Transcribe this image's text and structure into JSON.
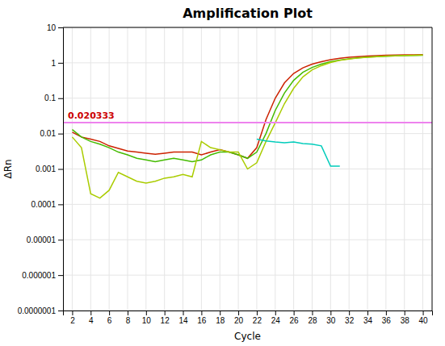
{
  "chart_data": {
    "type": "line",
    "title": "Amplification Plot",
    "x_label": "Cycle",
    "y_label": "ΔRn",
    "log": "y",
    "grid": true,
    "xlim": [
      1,
      41
    ],
    "ylim": [
      1e-07,
      10
    ],
    "xticks": [
      2,
      4,
      6,
      8,
      10,
      12,
      14,
      16,
      18,
      20,
      22,
      24,
      26,
      28,
      30,
      32,
      34,
      36,
      38,
      40
    ],
    "yticks": [
      {
        "value": 1e-07,
        "label": "0.0000001"
      },
      {
        "value": 1e-06,
        "label": "0.000001"
      },
      {
        "value": 1e-05,
        "label": "0.00001"
      },
      {
        "value": 0.0001,
        "label": "0.0001"
      },
      0.001,
      0.01,
      0.1,
      1,
      10
    ],
    "series": [
      {
        "color": "#cc2200",
        "x": [
          2,
          3,
          4,
          5,
          6,
          7,
          8,
          9,
          10,
          11,
          12,
          13,
          14,
          15,
          16,
          17,
          18,
          19,
          20,
          21,
          22,
          23,
          24,
          25,
          26,
          27,
          28,
          29,
          30,
          31,
          32,
          33,
          34,
          35,
          36,
          37,
          38,
          39,
          40
        ],
        "values": [
          0.011,
          0.008,
          0.007,
          0.006,
          0.0045,
          0.0038,
          0.0032,
          0.003,
          0.0028,
          0.0026,
          0.0028,
          0.003,
          0.003,
          0.003,
          0.0025,
          0.003,
          0.0035,
          0.003,
          0.0025,
          0.002,
          0.004,
          0.025,
          0.1,
          0.27,
          0.5,
          0.72,
          0.92,
          1.08,
          1.22,
          1.34,
          1.43,
          1.5,
          1.56,
          1.6,
          1.63,
          1.65,
          1.67,
          1.68,
          1.7
        ]
      },
      {
        "color": "#44bb00",
        "x": [
          2,
          3,
          4,
          5,
          6,
          7,
          8,
          9,
          10,
          11,
          12,
          13,
          14,
          15,
          16,
          17,
          18,
          19,
          20,
          21,
          22,
          23,
          24,
          25,
          26,
          27,
          28,
          29,
          30,
          31,
          32,
          33,
          34,
          35,
          36,
          37,
          38,
          39,
          40
        ],
        "values": [
          0.013,
          0.008,
          0.006,
          0.005,
          0.004,
          0.003,
          0.0025,
          0.002,
          0.0018,
          0.0016,
          0.0018,
          0.002,
          0.0018,
          0.0016,
          0.0018,
          0.0025,
          0.003,
          0.003,
          0.0025,
          0.002,
          0.003,
          0.01,
          0.045,
          0.14,
          0.32,
          0.54,
          0.74,
          0.92,
          1.08,
          1.2,
          1.3,
          1.38,
          1.45,
          1.5,
          1.54,
          1.57,
          1.6,
          1.62,
          1.64
        ]
      },
      {
        "color": "#aacc00",
        "x": [
          2,
          3,
          4,
          5,
          6,
          7,
          8,
          9,
          10,
          11,
          12,
          13,
          14,
          15,
          16,
          17,
          18,
          19,
          20,
          21,
          22,
          23,
          24,
          25,
          26,
          27,
          28,
          29,
          30,
          31,
          32,
          33,
          34,
          35,
          36,
          37,
          38,
          39,
          40
        ],
        "values": [
          0.008,
          0.004,
          0.0002,
          0.00015,
          0.00025,
          0.0008,
          0.0006,
          0.00045,
          0.0004,
          0.00045,
          0.00055,
          0.0006,
          0.0007,
          0.0006,
          0.006,
          0.004,
          0.0035,
          0.003,
          0.003,
          0.001,
          0.0015,
          0.006,
          0.02,
          0.07,
          0.19,
          0.4,
          0.63,
          0.83,
          1.02,
          1.17,
          1.28,
          1.37,
          1.44,
          1.5,
          1.55,
          1.58,
          1.61,
          1.63,
          1.65
        ]
      },
      {
        "color": "#00ccbb",
        "x": [
          22,
          23,
          24,
          25,
          26,
          27,
          28,
          29,
          30,
          31
        ],
        "values": [
          0.007,
          0.0062,
          0.0058,
          0.0055,
          0.0058,
          0.0052,
          0.005,
          0.0045,
          0.0012,
          0.0012
        ]
      }
    ],
    "annotations": [
      {
        "type": "hline",
        "y": 0.020333,
        "color": "#ee82ee",
        "label": "0.020333",
        "label_color": "#cc0000"
      }
    ]
  }
}
